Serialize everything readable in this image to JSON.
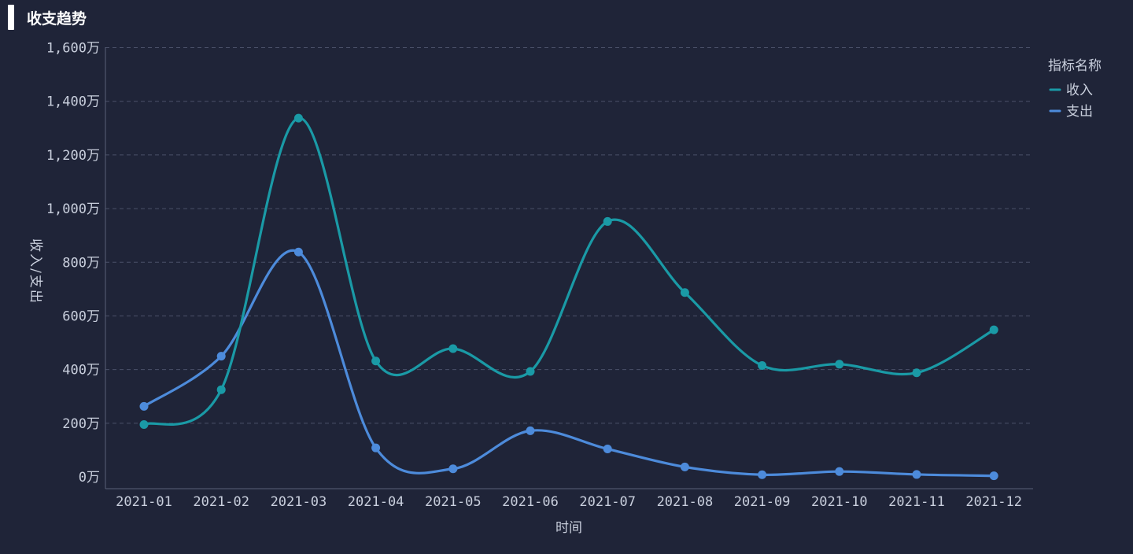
{
  "header": {
    "title": "收支趋势"
  },
  "chart_data": {
    "type": "line",
    "title": "收支趋势",
    "xlabel": "时间",
    "ylabel": "收入/支出",
    "categories": [
      "2021-01",
      "2021-02",
      "2021-03",
      "2021-04",
      "2021-05",
      "2021-06",
      "2021-07",
      "2021-08",
      "2021-09",
      "2021-10",
      "2021-11",
      "2021-12"
    ],
    "ylim": [
      0,
      1600
    ],
    "yticks": [
      0,
      200,
      400,
      600,
      800,
      1000,
      1200,
      1400,
      1600
    ],
    "ytick_labels": [
      "0万",
      "200万",
      "400万",
      "600万",
      "800万",
      "1,000万",
      "1,200万",
      "1,400万",
      "1,600万"
    ],
    "grid": true,
    "legend": {
      "title": "指标名称",
      "position": "top-right"
    },
    "series": [
      {
        "name": "收入",
        "color": "#1a9aa6",
        "values": [
          195,
          325,
          1337,
          432,
          478,
          393,
          952,
          687,
          415,
          420,
          388,
          548
        ]
      },
      {
        "name": "支出",
        "color": "#4d8bdb",
        "values": [
          263,
          450,
          838,
          108,
          30,
          172,
          104,
          37,
          8,
          20,
          9,
          4
        ]
      }
    ]
  }
}
